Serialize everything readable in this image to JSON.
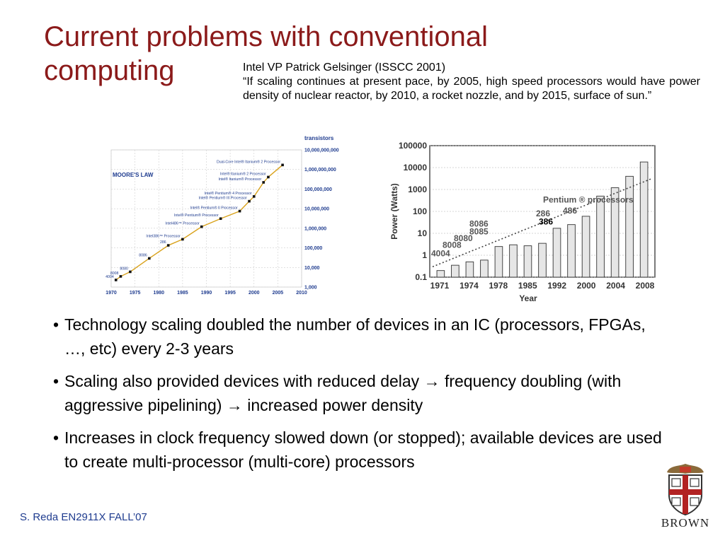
{
  "slide": {
    "title": "Current problems with conventional computing",
    "quote_head": "Intel VP Patrick Gelsinger (ISSCC 2001)",
    "quote_text": "“If scaling continues at present pace, by 2005, high speed processors would have power density of nuclear reactor, by 2010, a rocket nozzle, and by 2015, surface of sun.”",
    "bullets": [
      "Technology scaling doubled the number  of devices in an IC (processors, FPGAs, …, etc) every 2-3 years",
      " Scaling also provided devices with reduced delay →  frequency doubling (with aggressive pipelining) → increased power density",
      "Increases in clock frequency slowed down (or stopped); available devices are used to create multi-processor (multi-core) processors"
    ],
    "bullet_mark": "•",
    "footer": "S. Reda EN2911X FALL’07",
    "logo_text": "BROWN"
  },
  "chart_data": [
    {
      "type": "line",
      "title": "MOORE'S LAW",
      "ylabel": "transistors",
      "y_scale": "log",
      "x_ticks": [
        "1970",
        "1975",
        "1980",
        "1985",
        "1990",
        "1995",
        "2000",
        "2005",
        "2010"
      ],
      "y_ticks": [
        "1,000",
        "10,000",
        "100,000",
        "1,000,000",
        "10,000,000",
        "100,000,000",
        "1,000,000,000",
        "10,000,000,000"
      ],
      "xlim": [
        1970,
        2010
      ],
      "ylim": [
        1000,
        10000000000
      ],
      "grid": true,
      "color": "#d9a21b",
      "points": [
        {
          "label": "4004",
          "x": 1971,
          "y": 2300
        },
        {
          "label": "8008",
          "x": 1972,
          "y": 3500
        },
        {
          "label": "8080",
          "x": 1974,
          "y": 6000
        },
        {
          "label": "8086",
          "x": 1978,
          "y": 29000
        },
        {
          "label": "286",
          "x": 1982,
          "y": 134000
        },
        {
          "label": "Intel386™ Processor",
          "x": 1985,
          "y": 275000
        },
        {
          "label": "Intel486™ Processor",
          "x": 1989,
          "y": 1200000
        },
        {
          "label": "Intel® Pentium® Processor",
          "x": 1993,
          "y": 3100000
        },
        {
          "label": "Intel® Pentium® II Processor",
          "x": 1997,
          "y": 7500000
        },
        {
          "label": "Intel® Pentium® III Processor",
          "x": 1999,
          "y": 24000000
        },
        {
          "label": "Intel® Pentium® 4 Processor",
          "x": 2000,
          "y": 42000000
        },
        {
          "label": "Intel® Itanium® Processor",
          "x": 2002,
          "y": 220000000
        },
        {
          "label": "Intel® Itanium® 2 Processor",
          "x": 2003,
          "y": 410000000
        },
        {
          "label": "Dual-Core Intel® Itanium® 2 Processor",
          "x": 2006,
          "y": 1700000000
        }
      ]
    },
    {
      "type": "bar",
      "xlabel": "Year",
      "ylabel": "Power (Watts)",
      "y_scale": "log",
      "ylim": [
        0.1,
        100000
      ],
      "y_ticks": [
        "100000",
        "10000",
        "1000",
        "100",
        "10",
        "1",
        "0.1"
      ],
      "x_ticks": [
        "1971",
        "1974",
        "1978",
        "1985",
        "1992",
        "2000",
        "2004",
        "2008"
      ],
      "grid": true,
      "annotations": [
        "4004",
        "8008",
        "8080",
        "8085",
        "8086",
        "286",
        "386",
        "486",
        "Pentium ® processors"
      ],
      "values": [
        0.2,
        0.35,
        0.5,
        0.6,
        2.5,
        3,
        2.7,
        3.5,
        17,
        25,
        60,
        500,
        1200,
        4000,
        18000
      ]
    }
  ]
}
